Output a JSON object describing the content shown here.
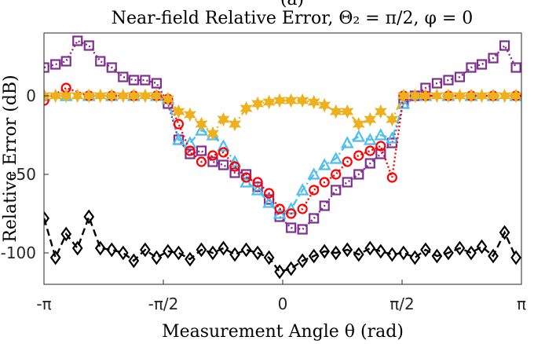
{
  "chart_data": {
    "type": "line",
    "panel_label": "(a)",
    "title": "Near-field Relative Error, Θ₂ = π/2, φ = 0",
    "xlabel": "Measurement Angle θ (rad)",
    "ylabel": "Relative Error (dB)",
    "xlim": [
      -3.1416,
      3.1416
    ],
    "ylim": [
      -120,
      40
    ],
    "x_ticks": [
      {
        "value": -3.1416,
        "label": "-π"
      },
      {
        "value": -1.5708,
        "label": "-π/2"
      },
      {
        "value": 0,
        "label": "0"
      },
      {
        "value": 1.5708,
        "label": "π/2"
      },
      {
        "value": 3.1416,
        "label": "π"
      }
    ],
    "y_ticks": [
      {
        "value": 0,
        "label": "0"
      },
      {
        "value": -50,
        "label": "-50"
      },
      {
        "value": -100,
        "label": "-100"
      }
    ],
    "grid": false,
    "legend": "none",
    "series": [
      {
        "color": "#7E2F8E",
        "line": "dotted",
        "marker": "square",
        "x": [
          -3.14,
          -2.99,
          -2.85,
          -2.7,
          -2.55,
          -2.4,
          -2.25,
          -2.1,
          -1.96,
          -1.81,
          -1.66,
          -1.51,
          -1.37,
          -1.22,
          -1.07,
          -0.92,
          -0.78,
          -0.63,
          -0.48,
          -0.33,
          -0.18,
          -0.04,
          0.11,
          0.26,
          0.41,
          0.55,
          0.7,
          0.85,
          1.0,
          1.15,
          1.29,
          1.44,
          1.59,
          1.74,
          1.88,
          2.03,
          2.18,
          2.33,
          2.48,
          2.62,
          2.77,
          2.92,
          3.07
        ],
        "y": [
          18,
          20,
          22,
          35,
          32,
          22,
          18,
          12,
          10,
          10,
          8,
          -5,
          -28,
          -37,
          -35,
          -42,
          -44,
          -49,
          -50,
          -58,
          -66,
          -77,
          -84,
          -85,
          -78,
          -70,
          -60,
          -55,
          -50,
          -43,
          -37,
          -30,
          -5,
          0,
          5,
          8,
          10,
          12,
          18,
          20,
          24,
          32,
          18
        ]
      },
      {
        "color": "#4DBEEE",
        "line": "dash-dot",
        "marker": "triangle",
        "x": [
          -3.14,
          -2.85,
          -2.55,
          -2.25,
          -1.96,
          -1.66,
          -1.51,
          -1.37,
          -1.22,
          -1.07,
          -0.92,
          -0.78,
          -0.63,
          -0.48,
          -0.33,
          -0.18,
          -0.04,
          0.11,
          0.26,
          0.41,
          0.55,
          0.7,
          0.85,
          1.0,
          1.15,
          1.29,
          1.44,
          1.59,
          1.88,
          2.18,
          2.48,
          2.77,
          3.07
        ],
        "y": [
          0,
          0,
          0,
          0,
          0,
          0,
          -2,
          -28,
          -30,
          -22,
          -25,
          -32,
          -42,
          -55,
          -60,
          -68,
          -75,
          -72,
          -60,
          -50,
          -44,
          -40,
          -30,
          -26,
          -28,
          -25,
          -27,
          -5,
          0,
          0,
          0,
          0,
          0
        ]
      },
      {
        "color": "#FF0000",
        "line": "dotted",
        "marker": "circle",
        "x": [
          -3.14,
          -2.85,
          -2.55,
          -2.25,
          -1.96,
          -1.66,
          -1.51,
          -1.37,
          -1.22,
          -1.07,
          -0.92,
          -0.78,
          -0.63,
          -0.48,
          -0.33,
          -0.18,
          -0.04,
          0.11,
          0.26,
          0.41,
          0.55,
          0.7,
          0.85,
          1.0,
          1.15,
          1.29,
          1.44,
          1.59,
          1.88,
          2.18,
          2.48,
          2.77,
          3.07
        ],
        "y": [
          -3,
          5,
          0,
          0,
          0,
          0,
          -2,
          -18,
          -35,
          -42,
          -38,
          -36,
          -45,
          -52,
          -55,
          -62,
          -72,
          -75,
          -72,
          -60,
          -55,
          -50,
          -42,
          -38,
          -35,
          -32,
          -52,
          0,
          0,
          0,
          0,
          0,
          0
        ]
      },
      {
        "color": "#EDB120",
        "line": "dash-dot",
        "marker": "hexagram",
        "x": [
          -3.14,
          -2.99,
          -2.85,
          -2.7,
          -2.55,
          -2.4,
          -2.25,
          -2.1,
          -1.96,
          -1.81,
          -1.66,
          -1.51,
          -1.37,
          -1.22,
          -1.07,
          -0.92,
          -0.78,
          -0.63,
          -0.48,
          -0.33,
          -0.18,
          -0.04,
          0.11,
          0.26,
          0.41,
          0.55,
          0.7,
          0.85,
          1.0,
          1.15,
          1.29,
          1.44,
          1.59,
          1.74,
          1.88,
          2.03,
          2.18,
          2.33,
          2.48,
          2.62,
          2.77,
          2.92,
          3.07
        ],
        "y": [
          0,
          0,
          0,
          0,
          0,
          0,
          0,
          0,
          0,
          0,
          0,
          -2,
          -10,
          -12,
          -18,
          -24,
          -15,
          -18,
          -8,
          -5,
          -4,
          -3,
          -3,
          -3,
          -4,
          -6,
          -10,
          -10,
          -18,
          -15,
          -10,
          -15,
          0,
          0,
          0,
          0,
          0,
          0,
          0,
          0,
          0,
          0,
          0
        ]
      },
      {
        "color": "#000000",
        "line": "dashed",
        "marker": "diamond",
        "x": [
          -3.14,
          -2.99,
          -2.85,
          -2.7,
          -2.55,
          -2.4,
          -2.25,
          -2.1,
          -1.96,
          -1.81,
          -1.66,
          -1.51,
          -1.37,
          -1.22,
          -1.07,
          -0.92,
          -0.78,
          -0.63,
          -0.48,
          -0.33,
          -0.18,
          -0.04,
          0.11,
          0.26,
          0.41,
          0.55,
          0.7,
          0.85,
          1.0,
          1.15,
          1.29,
          1.44,
          1.59,
          1.74,
          1.88,
          2.03,
          2.18,
          2.33,
          2.48,
          2.62,
          2.77,
          2.92,
          3.07
        ],
        "y": [
          -78,
          -103,
          -88,
          -97,
          -77,
          -97,
          -98,
          -100,
          -105,
          -98,
          -103,
          -99,
          -100,
          -104,
          -98,
          -100,
          -97,
          -101,
          -98,
          -100,
          -103,
          -112,
          -110,
          -105,
          -102,
          -99,
          -100,
          -98,
          -101,
          -97,
          -99,
          -101,
          -100,
          -103,
          -98,
          -102,
          -100,
          -97,
          -100,
          -96,
          -102,
          -87,
          -103
        ]
      }
    ]
  }
}
